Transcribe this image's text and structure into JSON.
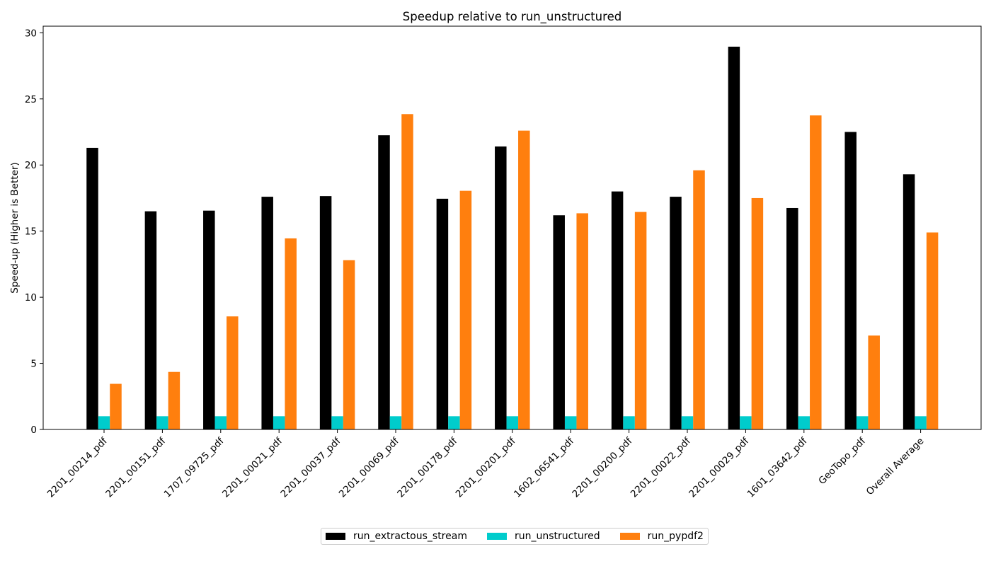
{
  "chart_data": {
    "type": "bar",
    "title": "Speedup relative to run_unstructured",
    "xlabel": "",
    "ylabel": "Speed-up (Higher is Better)",
    "ylim": [
      0,
      30.5
    ],
    "yticks": [
      0,
      5,
      10,
      15,
      20,
      25,
      30
    ],
    "grid": false,
    "legend_position": "bottom-center",
    "categories": [
      "2201_00214_pdf",
      "2201_00151_pdf",
      "1707_09725_pdf",
      "2201_00021_pdf",
      "2201_00037_pdf",
      "2201_00069_pdf",
      "2201_00178_pdf",
      "2201_00201_pdf",
      "1602_06541_pdf",
      "2201_00200_pdf",
      "2201_00022_pdf",
      "2201_00029_pdf",
      "1601_03642_pdf",
      "GeoTopo_pdf",
      "Overall Average"
    ],
    "series": [
      {
        "name": "run_extractous_stream",
        "color": "#000000",
        "values": [
          21.3,
          16.5,
          16.55,
          17.6,
          17.65,
          22.25,
          17.45,
          21.4,
          16.2,
          18.0,
          17.6,
          28.95,
          16.75,
          22.5,
          19.3
        ]
      },
      {
        "name": "run_unstructured",
        "color": "#00cccc",
        "values": [
          1,
          1,
          1,
          1,
          1,
          1,
          1,
          1,
          1,
          1,
          1,
          1,
          1,
          1,
          1
        ]
      },
      {
        "name": "run_pypdf2",
        "color": "#ff7f0e",
        "values": [
          3.45,
          4.35,
          8.55,
          14.45,
          12.8,
          23.85,
          18.05,
          22.6,
          16.35,
          16.45,
          19.6,
          17.5,
          23.75,
          7.1,
          14.9
        ]
      }
    ]
  }
}
